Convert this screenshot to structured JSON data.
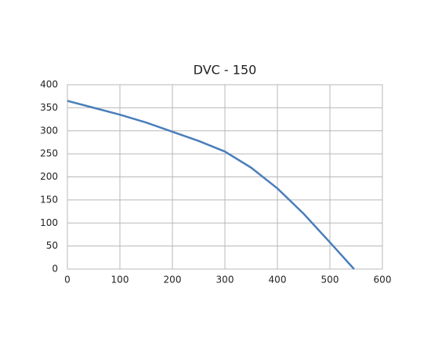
{
  "chart_data": {
    "type": "line",
    "title": "DVC - 150",
    "x": [
      0,
      50,
      100,
      150,
      200,
      250,
      300,
      350,
      400,
      450,
      500,
      546
    ],
    "values": [
      365,
      350,
      335,
      318,
      298,
      278,
      255,
      220,
      175,
      120,
      58,
      0
    ],
    "color": "#4a7ebb",
    "xlim": [
      0,
      600
    ],
    "xticks": [
      0,
      100,
      200,
      300,
      400,
      500,
      600
    ],
    "ylim": [
      0,
      400
    ],
    "yticks": [
      0,
      50,
      100,
      150,
      200,
      250,
      300,
      350,
      400
    ],
    "grid": true
  }
}
